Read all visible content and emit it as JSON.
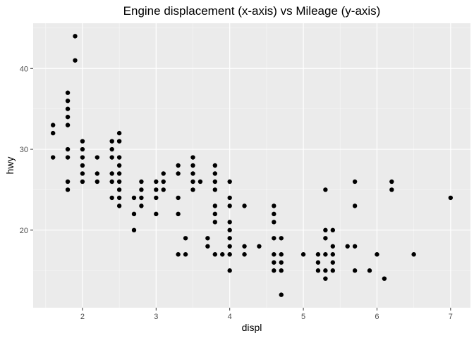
{
  "chart_data": {
    "type": "scatter",
    "title": "Engine displacement (x-axis) vs Mileage (y-axis)",
    "xlabel": "displ",
    "ylabel": "hwy",
    "xlim": [
      1.33,
      7.27
    ],
    "ylim": [
      10.4,
      45.6
    ],
    "x_ticks": [
      2,
      3,
      4,
      5,
      6,
      7
    ],
    "y_ticks": [
      20,
      30,
      40
    ],
    "grid": true,
    "colors": {
      "panel": "#ebebeb",
      "grid": "#ffffff",
      "point": "#000000",
      "tick_label": "#4d4d4d",
      "tick": "#333333"
    },
    "points": [
      [
        1.6,
        33
      ],
      [
        1.6,
        32
      ],
      [
        1.6,
        29
      ],
      [
        1.8,
        37
      ],
      [
        1.8,
        36
      ],
      [
        1.8,
        35
      ],
      [
        1.8,
        34
      ],
      [
        1.8,
        33
      ],
      [
        1.8,
        30
      ],
      [
        1.8,
        29
      ],
      [
        1.8,
        26
      ],
      [
        1.8,
        25
      ],
      [
        1.9,
        44
      ],
      [
        1.9,
        41
      ],
      [
        2.0,
        31
      ],
      [
        2.0,
        30
      ],
      [
        2.0,
        29
      ],
      [
        2.0,
        28
      ],
      [
        2.0,
        27
      ],
      [
        2.0,
        26
      ],
      [
        2.2,
        29
      ],
      [
        2.2,
        27
      ],
      [
        2.2,
        26
      ],
      [
        2.4,
        31
      ],
      [
        2.4,
        30
      ],
      [
        2.4,
        29
      ],
      [
        2.4,
        27
      ],
      [
        2.4,
        26
      ],
      [
        2.4,
        24
      ],
      [
        2.5,
        32
      ],
      [
        2.5,
        31
      ],
      [
        2.5,
        29
      ],
      [
        2.5,
        28
      ],
      [
        2.5,
        27
      ],
      [
        2.5,
        26
      ],
      [
        2.5,
        25
      ],
      [
        2.5,
        24
      ],
      [
        2.5,
        23
      ],
      [
        2.7,
        24
      ],
      [
        2.7,
        22
      ],
      [
        2.7,
        20
      ],
      [
        2.8,
        26
      ],
      [
        2.8,
        25
      ],
      [
        2.8,
        24
      ],
      [
        2.8,
        23
      ],
      [
        3.0,
        26
      ],
      [
        3.0,
        25
      ],
      [
        3.0,
        24
      ],
      [
        3.0,
        22
      ],
      [
        3.1,
        27
      ],
      [
        3.1,
        26
      ],
      [
        3.1,
        25
      ],
      [
        3.3,
        28
      ],
      [
        3.3,
        27
      ],
      [
        3.3,
        24
      ],
      [
        3.3,
        22
      ],
      [
        3.3,
        17
      ],
      [
        3.4,
        19
      ],
      [
        3.4,
        17
      ],
      [
        3.5,
        29
      ],
      [
        3.5,
        28
      ],
      [
        3.5,
        27
      ],
      [
        3.5,
        26
      ],
      [
        3.5,
        25
      ],
      [
        3.6,
        26
      ],
      [
        3.7,
        19
      ],
      [
        3.7,
        18
      ],
      [
        3.8,
        28
      ],
      [
        3.8,
        27
      ],
      [
        3.8,
        26
      ],
      [
        3.8,
        25
      ],
      [
        3.8,
        23
      ],
      [
        3.8,
        22
      ],
      [
        3.8,
        21
      ],
      [
        3.8,
        17
      ],
      [
        3.9,
        17
      ],
      [
        4.0,
        26
      ],
      [
        4.0,
        24
      ],
      [
        4.0,
        23
      ],
      [
        4.0,
        21
      ],
      [
        4.0,
        20
      ],
      [
        4.0,
        19
      ],
      [
        4.0,
        18
      ],
      [
        4.0,
        17
      ],
      [
        4.0,
        15
      ],
      [
        4.2,
        23
      ],
      [
        4.2,
        18
      ],
      [
        4.2,
        17
      ],
      [
        4.4,
        18
      ],
      [
        4.6,
        23
      ],
      [
        4.6,
        22
      ],
      [
        4.6,
        21
      ],
      [
        4.6,
        19
      ],
      [
        4.6,
        17
      ],
      [
        4.6,
        16
      ],
      [
        4.6,
        15
      ],
      [
        4.7,
        19
      ],
      [
        4.7,
        17
      ],
      [
        4.7,
        16
      ],
      [
        4.7,
        15
      ],
      [
        4.7,
        12
      ],
      [
        5.0,
        17
      ],
      [
        5.2,
        17
      ],
      [
        5.2,
        16
      ],
      [
        5.2,
        15
      ],
      [
        5.3,
        25
      ],
      [
        5.3,
        20
      ],
      [
        5.3,
        19
      ],
      [
        5.3,
        17
      ],
      [
        5.3,
        15
      ],
      [
        5.3,
        14
      ],
      [
        5.4,
        20
      ],
      [
        5.4,
        18
      ],
      [
        5.4,
        17
      ],
      [
        5.4,
        16
      ],
      [
        5.4,
        15
      ],
      [
        5.6,
        18
      ],
      [
        5.7,
        26
      ],
      [
        5.7,
        23
      ],
      [
        5.7,
        18
      ],
      [
        5.7,
        15
      ],
      [
        5.9,
        15
      ],
      [
        6.0,
        17
      ],
      [
        6.1,
        14
      ],
      [
        6.2,
        26
      ],
      [
        6.2,
        25
      ],
      [
        6.5,
        17
      ],
      [
        7.0,
        24
      ]
    ]
  }
}
